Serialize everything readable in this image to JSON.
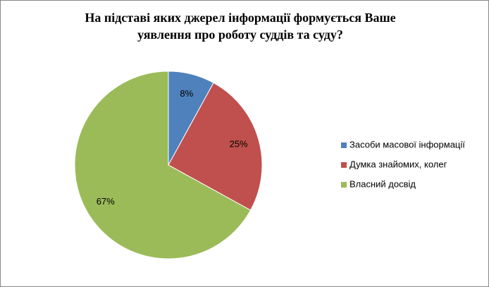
{
  "chart_data": {
    "type": "pie",
    "title": "На підставі яких джерел інформації формується Ваше уявлення про роботу суддів та  суду?",
    "categories": [
      "Засоби масової інформації",
      "Думка знайомих, колег",
      "Власний досвід"
    ],
    "values": [
      8,
      25,
      67
    ],
    "value_labels": [
      "8%",
      "25%",
      "67%"
    ],
    "colors": [
      "#4f81bd",
      "#c0504d",
      "#9bbb59"
    ],
    "legend": "right"
  }
}
